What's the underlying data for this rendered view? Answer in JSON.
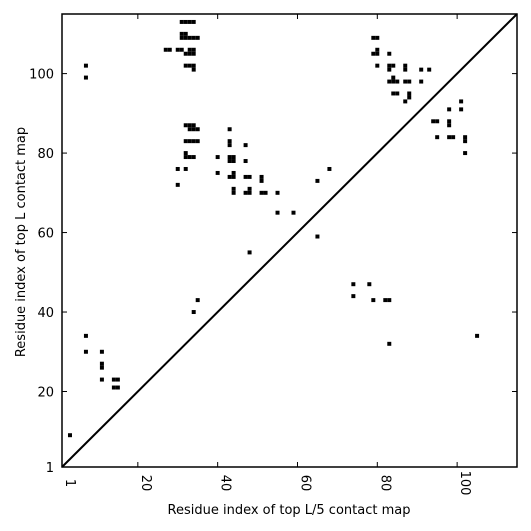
{
  "chart_data": {
    "type": "scatter",
    "xlabel": "Residue index of top L/5 contact map",
    "ylabel": "Residue index of top L contact map",
    "xlim": [
      1,
      115
    ],
    "ylim": [
      1,
      115
    ],
    "x_ticks": [
      {
        "value": 1,
        "label": "1"
      },
      {
        "value": 20,
        "label": "20"
      },
      {
        "value": 40,
        "label": "40"
      },
      {
        "value": 60,
        "label": "60"
      },
      {
        "value": 80,
        "label": "80"
      },
      {
        "value": 100,
        "label": "100"
      }
    ],
    "y_ticks": [
      {
        "value": 1,
        "label": "1"
      },
      {
        "value": 20,
        "label": "20"
      },
      {
        "value": 40,
        "label": "40"
      },
      {
        "value": 60,
        "label": "60"
      },
      {
        "value": 80,
        "label": "80"
      },
      {
        "value": 100,
        "label": "100"
      }
    ],
    "diagonal": true,
    "marker_color": "#000000",
    "series": [
      {
        "values": [
          [
            3,
            9
          ],
          [
            7,
            99
          ],
          [
            7,
            102
          ],
          [
            7,
            34
          ],
          [
            7,
            30
          ],
          [
            11,
            30
          ],
          [
            11,
            27
          ],
          [
            11,
            26
          ],
          [
            11,
            23
          ],
          [
            14,
            23
          ],
          [
            15,
            23
          ],
          [
            14,
            21
          ],
          [
            15,
            21
          ],
          [
            27,
            106
          ],
          [
            28,
            106
          ],
          [
            30,
            106
          ],
          [
            31,
            106
          ],
          [
            31,
            110
          ],
          [
            32,
            110
          ],
          [
            31,
            109
          ],
          [
            32,
            109
          ],
          [
            33,
            109
          ],
          [
            34,
            109
          ],
          [
            35,
            109
          ],
          [
            31,
            113
          ],
          [
            32,
            113
          ],
          [
            33,
            113
          ],
          [
            34,
            113
          ],
          [
            33,
            106
          ],
          [
            34,
            106
          ],
          [
            33,
            105
          ],
          [
            34,
            105
          ],
          [
            32,
            105
          ],
          [
            32,
            102
          ],
          [
            33,
            102
          ],
          [
            34,
            102
          ],
          [
            34,
            101
          ],
          [
            32,
            87
          ],
          [
            33,
            87
          ],
          [
            34,
            87
          ],
          [
            33,
            86
          ],
          [
            34,
            86
          ],
          [
            35,
            86
          ],
          [
            32,
            83
          ],
          [
            33,
            83
          ],
          [
            34,
            83
          ],
          [
            35,
            83
          ],
          [
            32,
            80
          ],
          [
            32,
            79
          ],
          [
            33,
            79
          ],
          [
            34,
            79
          ],
          [
            30,
            76
          ],
          [
            32,
            76
          ],
          [
            30,
            72
          ],
          [
            35,
            43
          ],
          [
            34,
            40
          ],
          [
            40,
            79
          ],
          [
            43,
            86
          ],
          [
            43,
            83
          ],
          [
            43,
            82
          ],
          [
            43,
            79
          ],
          [
            44,
            79
          ],
          [
            43,
            78
          ],
          [
            44,
            78
          ],
          [
            47,
            82
          ],
          [
            47,
            78
          ],
          [
            40,
            75
          ],
          [
            43,
            74
          ],
          [
            44,
            74
          ],
          [
            44,
            75
          ],
          [
            47,
            74
          ],
          [
            48,
            74
          ],
          [
            44,
            71
          ],
          [
            44,
            70
          ],
          [
            47,
            70
          ],
          [
            48,
            70
          ],
          [
            48,
            71
          ],
          [
            51,
            74
          ],
          [
            51,
            73
          ],
          [
            51,
            70
          ],
          [
            52,
            70
          ],
          [
            55,
            70
          ],
          [
            55,
            65
          ],
          [
            59,
            65
          ],
          [
            48,
            55
          ],
          [
            65,
            73
          ],
          [
            68,
            76
          ],
          [
            65,
            59
          ],
          [
            74,
            47
          ],
          [
            78,
            47
          ],
          [
            74,
            44
          ],
          [
            79,
            43
          ],
          [
            82,
            43
          ],
          [
            83,
            43
          ],
          [
            83,
            32
          ],
          [
            105,
            34
          ],
          [
            79,
            109
          ],
          [
            80,
            109
          ],
          [
            80,
            106
          ],
          [
            79,
            105
          ],
          [
            80,
            105
          ],
          [
            83,
            105
          ],
          [
            80,
            102
          ],
          [
            83,
            102
          ],
          [
            84,
            102
          ],
          [
            83,
            101
          ],
          [
            87,
            102
          ],
          [
            87,
            101
          ],
          [
            91,
            101
          ],
          [
            93,
            101
          ],
          [
            83,
            98
          ],
          [
            84,
            98
          ],
          [
            85,
            98
          ],
          [
            87,
            98
          ],
          [
            88,
            98
          ],
          [
            91,
            98
          ],
          [
            84,
            99
          ],
          [
            84,
            95
          ],
          [
            85,
            95
          ],
          [
            88,
            95
          ],
          [
            88,
            94
          ],
          [
            87,
            93
          ],
          [
            94,
            88
          ],
          [
            95,
            88
          ],
          [
            98,
            88
          ],
          [
            98,
            87
          ],
          [
            98,
            91
          ],
          [
            101,
            91
          ],
          [
            101,
            93
          ],
          [
            95,
            84
          ],
          [
            98,
            84
          ],
          [
            99,
            84
          ],
          [
            102,
            84
          ],
          [
            102,
            83
          ],
          [
            102,
            80
          ]
        ]
      }
    ]
  }
}
